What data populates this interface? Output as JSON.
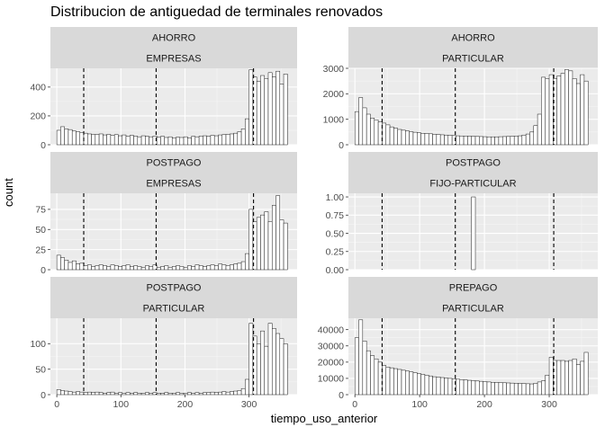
{
  "chart_data": {
    "type": "bar",
    "title": "Distribucion de antiguedad de terminales renovados",
    "xlabel": "tiempo_uso_anterior",
    "ylabel": "count",
    "xlim": [
      -10,
      375
    ],
    "x_ticks": [
      0,
      100,
      200,
      300
    ],
    "vlines": [
      42,
      155,
      307
    ],
    "bin_width": 6,
    "bin_starts": [
      0,
      6,
      12,
      18,
      24,
      30,
      36,
      42,
      48,
      54,
      60,
      66,
      72,
      78,
      84,
      90,
      96,
      102,
      108,
      114,
      120,
      126,
      132,
      138,
      144,
      150,
      156,
      162,
      168,
      174,
      180,
      186,
      192,
      198,
      204,
      210,
      216,
      222,
      228,
      234,
      240,
      246,
      252,
      258,
      264,
      270,
      276,
      282,
      288,
      294,
      300,
      306,
      312,
      318,
      324,
      330,
      336,
      342,
      348,
      354
    ],
    "panels": [
      {
        "strip1": "AHORRO",
        "strip2": "EMPRESAS",
        "ylim": [
          0,
          530
        ],
        "y_ticks": [
          0,
          200,
          400
        ],
        "values": [
          100,
          125,
          110,
          105,
          95,
          90,
          85,
          80,
          75,
          72,
          70,
          75,
          68,
          72,
          65,
          70,
          62,
          68,
          58,
          65,
          60,
          55,
          62,
          58,
          55,
          60,
          52,
          58,
          50,
          55,
          48,
          52,
          50,
          55,
          48,
          58,
          55,
          60,
          62,
          58,
          65,
          62,
          68,
          70,
          72,
          75,
          80,
          90,
          110,
          180,
          520,
          470,
          440,
          480,
          460,
          500,
          470,
          510,
          420,
          490
        ]
      },
      {
        "strip1": "AHORRO",
        "strip2": "PARTICULAR",
        "ylim": [
          0,
          3000
        ],
        "y_ticks": [
          0,
          1000,
          2000,
          3000
        ],
        "values": [
          1300,
          1850,
          1450,
          1200,
          1050,
          980,
          900,
          850,
          780,
          700,
          650,
          600,
          570,
          540,
          510,
          490,
          470,
          450,
          440,
          430,
          410,
          400,
          390,
          380,
          370,
          360,
          350,
          345,
          340,
          335,
          330,
          325,
          320,
          315,
          310,
          310,
          310,
          315,
          320,
          325,
          330,
          340,
          350,
          380,
          420,
          500,
          750,
          1200,
          2650,
          2600,
          2750,
          2600,
          2700,
          2800,
          2950,
          2900,
          2600,
          2400,
          2750,
          2500
        ]
      },
      {
        "strip1": "POSTPAGO",
        "strip2": "EMPRESAS",
        "ylim": [
          0,
          95
        ],
        "y_ticks": [
          0,
          25,
          50,
          75
        ],
        "values": [
          18,
          15,
          12,
          9,
          11,
          7,
          8,
          5,
          6,
          4,
          5,
          6,
          5,
          4,
          6,
          5,
          4,
          5,
          6,
          4,
          5,
          4,
          3,
          5,
          4,
          6,
          3,
          4,
          5,
          3,
          4,
          5,
          4,
          3,
          5,
          4,
          6,
          5,
          4,
          5,
          6,
          5,
          7,
          6,
          5,
          6,
          7,
          8,
          10,
          20,
          75,
          60,
          65,
          68,
          72,
          60,
          80,
          92,
          62,
          58
        ]
      },
      {
        "strip1": "POSTPAGO",
        "strip2": "FIJO-PARTICULAR",
        "ylim": [
          0,
          1.05
        ],
        "y_ticks": [
          0.0,
          0.25,
          0.5,
          0.75,
          1.0
        ],
        "values": [
          0,
          0,
          0,
          0,
          0,
          0,
          0,
          0,
          0,
          0,
          0,
          0,
          0,
          0,
          0,
          0,
          0,
          0,
          0,
          0,
          0,
          0,
          0,
          0,
          0,
          0,
          0,
          0,
          0,
          0,
          1,
          0,
          0,
          0,
          0,
          0,
          0,
          0,
          0,
          0,
          0,
          0,
          0,
          0,
          0,
          0,
          0,
          0,
          0,
          0,
          0,
          0,
          0,
          0,
          0,
          0,
          0,
          0,
          0,
          0
        ]
      },
      {
        "strip1": "POSTPAGO",
        "strip2": "PARTICULAR",
        "ylim": [
          0,
          150
        ],
        "y_ticks": [
          0,
          50,
          100
        ],
        "values": [
          10,
          8,
          7,
          6,
          5,
          6,
          5,
          4,
          5,
          4,
          5,
          4,
          3,
          4,
          5,
          3,
          4,
          3,
          4,
          3,
          4,
          3,
          3,
          4,
          3,
          4,
          3,
          3,
          4,
          3,
          3,
          4,
          3,
          3,
          4,
          3,
          4,
          3,
          4,
          4,
          5,
          4,
          5,
          6,
          5,
          6,
          7,
          8,
          12,
          30,
          140,
          115,
          100,
          125,
          95,
          140,
          130,
          120,
          110,
          100
        ]
      },
      {
        "strip1": "PREPAGO",
        "strip2": "PARTICULAR",
        "ylim": [
          0,
          47000
        ],
        "y_ticks": [
          0,
          10000,
          20000,
          30000,
          40000
        ],
        "values": [
          35000,
          46000,
          33000,
          27000,
          24000,
          22000,
          20000,
          18000,
          17000,
          16500,
          16000,
          15500,
          15000,
          14500,
          14000,
          13500,
          13000,
          12500,
          12000,
          11500,
          11000,
          10800,
          10500,
          10200,
          10000,
          9800,
          9500,
          9200,
          9000,
          8800,
          8600,
          8400,
          8200,
          8000,
          7800,
          7600,
          7500,
          7400,
          7300,
          7200,
          7100,
          7000,
          6900,
          6800,
          6700,
          6600,
          7000,
          7800,
          8500,
          12000,
          23000,
          21000,
          21000,
          21000,
          20500,
          21000,
          22000,
          18500,
          20500,
          26000
        ]
      }
    ]
  }
}
